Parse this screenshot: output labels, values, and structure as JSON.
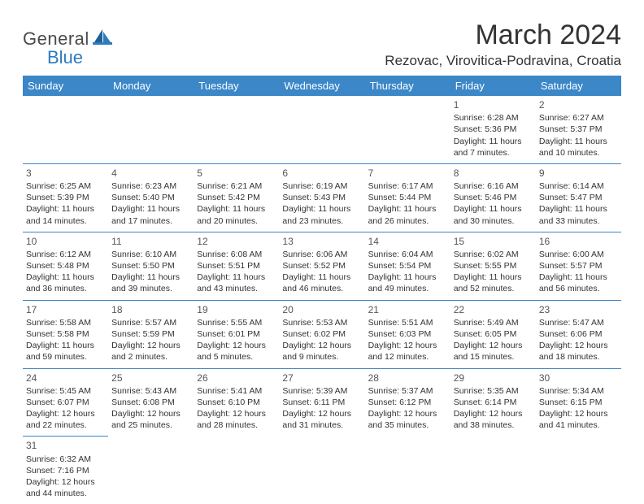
{
  "brand": {
    "part1": "General",
    "part2": "Blue"
  },
  "title": "March 2024",
  "location": "Rezovac, Virovitica-Podravina, Croatia",
  "colors": {
    "header_bg": "#3b87c8",
    "header_text": "#ffffff",
    "border": "#3b87c8",
    "brand_accent": "#2e7bbf",
    "text": "#333333"
  },
  "weekdays": [
    "Sunday",
    "Monday",
    "Tuesday",
    "Wednesday",
    "Thursday",
    "Friday",
    "Saturday"
  ],
  "weeks": [
    [
      null,
      null,
      null,
      null,
      null,
      {
        "n": "1",
        "sr": "Sunrise: 6:28 AM",
        "ss": "Sunset: 5:36 PM",
        "dl1": "Daylight: 11 hours",
        "dl2": "and 7 minutes."
      },
      {
        "n": "2",
        "sr": "Sunrise: 6:27 AM",
        "ss": "Sunset: 5:37 PM",
        "dl1": "Daylight: 11 hours",
        "dl2": "and 10 minutes."
      }
    ],
    [
      {
        "n": "3",
        "sr": "Sunrise: 6:25 AM",
        "ss": "Sunset: 5:39 PM",
        "dl1": "Daylight: 11 hours",
        "dl2": "and 14 minutes."
      },
      {
        "n": "4",
        "sr": "Sunrise: 6:23 AM",
        "ss": "Sunset: 5:40 PM",
        "dl1": "Daylight: 11 hours",
        "dl2": "and 17 minutes."
      },
      {
        "n": "5",
        "sr": "Sunrise: 6:21 AM",
        "ss": "Sunset: 5:42 PM",
        "dl1": "Daylight: 11 hours",
        "dl2": "and 20 minutes."
      },
      {
        "n": "6",
        "sr": "Sunrise: 6:19 AM",
        "ss": "Sunset: 5:43 PM",
        "dl1": "Daylight: 11 hours",
        "dl2": "and 23 minutes."
      },
      {
        "n": "7",
        "sr": "Sunrise: 6:17 AM",
        "ss": "Sunset: 5:44 PM",
        "dl1": "Daylight: 11 hours",
        "dl2": "and 26 minutes."
      },
      {
        "n": "8",
        "sr": "Sunrise: 6:16 AM",
        "ss": "Sunset: 5:46 PM",
        "dl1": "Daylight: 11 hours",
        "dl2": "and 30 minutes."
      },
      {
        "n": "9",
        "sr": "Sunrise: 6:14 AM",
        "ss": "Sunset: 5:47 PM",
        "dl1": "Daylight: 11 hours",
        "dl2": "and 33 minutes."
      }
    ],
    [
      {
        "n": "10",
        "sr": "Sunrise: 6:12 AM",
        "ss": "Sunset: 5:48 PM",
        "dl1": "Daylight: 11 hours",
        "dl2": "and 36 minutes."
      },
      {
        "n": "11",
        "sr": "Sunrise: 6:10 AM",
        "ss": "Sunset: 5:50 PM",
        "dl1": "Daylight: 11 hours",
        "dl2": "and 39 minutes."
      },
      {
        "n": "12",
        "sr": "Sunrise: 6:08 AM",
        "ss": "Sunset: 5:51 PM",
        "dl1": "Daylight: 11 hours",
        "dl2": "and 43 minutes."
      },
      {
        "n": "13",
        "sr": "Sunrise: 6:06 AM",
        "ss": "Sunset: 5:52 PM",
        "dl1": "Daylight: 11 hours",
        "dl2": "and 46 minutes."
      },
      {
        "n": "14",
        "sr": "Sunrise: 6:04 AM",
        "ss": "Sunset: 5:54 PM",
        "dl1": "Daylight: 11 hours",
        "dl2": "and 49 minutes."
      },
      {
        "n": "15",
        "sr": "Sunrise: 6:02 AM",
        "ss": "Sunset: 5:55 PM",
        "dl1": "Daylight: 11 hours",
        "dl2": "and 52 minutes."
      },
      {
        "n": "16",
        "sr": "Sunrise: 6:00 AM",
        "ss": "Sunset: 5:57 PM",
        "dl1": "Daylight: 11 hours",
        "dl2": "and 56 minutes."
      }
    ],
    [
      {
        "n": "17",
        "sr": "Sunrise: 5:58 AM",
        "ss": "Sunset: 5:58 PM",
        "dl1": "Daylight: 11 hours",
        "dl2": "and 59 minutes."
      },
      {
        "n": "18",
        "sr": "Sunrise: 5:57 AM",
        "ss": "Sunset: 5:59 PM",
        "dl1": "Daylight: 12 hours",
        "dl2": "and 2 minutes."
      },
      {
        "n": "19",
        "sr": "Sunrise: 5:55 AM",
        "ss": "Sunset: 6:01 PM",
        "dl1": "Daylight: 12 hours",
        "dl2": "and 5 minutes."
      },
      {
        "n": "20",
        "sr": "Sunrise: 5:53 AM",
        "ss": "Sunset: 6:02 PM",
        "dl1": "Daylight: 12 hours",
        "dl2": "and 9 minutes."
      },
      {
        "n": "21",
        "sr": "Sunrise: 5:51 AM",
        "ss": "Sunset: 6:03 PM",
        "dl1": "Daylight: 12 hours",
        "dl2": "and 12 minutes."
      },
      {
        "n": "22",
        "sr": "Sunrise: 5:49 AM",
        "ss": "Sunset: 6:05 PM",
        "dl1": "Daylight: 12 hours",
        "dl2": "and 15 minutes."
      },
      {
        "n": "23",
        "sr": "Sunrise: 5:47 AM",
        "ss": "Sunset: 6:06 PM",
        "dl1": "Daylight: 12 hours",
        "dl2": "and 18 minutes."
      }
    ],
    [
      {
        "n": "24",
        "sr": "Sunrise: 5:45 AM",
        "ss": "Sunset: 6:07 PM",
        "dl1": "Daylight: 12 hours",
        "dl2": "and 22 minutes."
      },
      {
        "n": "25",
        "sr": "Sunrise: 5:43 AM",
        "ss": "Sunset: 6:08 PM",
        "dl1": "Daylight: 12 hours",
        "dl2": "and 25 minutes."
      },
      {
        "n": "26",
        "sr": "Sunrise: 5:41 AM",
        "ss": "Sunset: 6:10 PM",
        "dl1": "Daylight: 12 hours",
        "dl2": "and 28 minutes."
      },
      {
        "n": "27",
        "sr": "Sunrise: 5:39 AM",
        "ss": "Sunset: 6:11 PM",
        "dl1": "Daylight: 12 hours",
        "dl2": "and 31 minutes."
      },
      {
        "n": "28",
        "sr": "Sunrise: 5:37 AM",
        "ss": "Sunset: 6:12 PM",
        "dl1": "Daylight: 12 hours",
        "dl2": "and 35 minutes."
      },
      {
        "n": "29",
        "sr": "Sunrise: 5:35 AM",
        "ss": "Sunset: 6:14 PM",
        "dl1": "Daylight: 12 hours",
        "dl2": "and 38 minutes."
      },
      {
        "n": "30",
        "sr": "Sunrise: 5:34 AM",
        "ss": "Sunset: 6:15 PM",
        "dl1": "Daylight: 12 hours",
        "dl2": "and 41 minutes."
      }
    ],
    [
      {
        "n": "31",
        "sr": "Sunrise: 6:32 AM",
        "ss": "Sunset: 7:16 PM",
        "dl1": "Daylight: 12 hours",
        "dl2": "and 44 minutes."
      },
      null,
      null,
      null,
      null,
      null,
      null
    ]
  ]
}
